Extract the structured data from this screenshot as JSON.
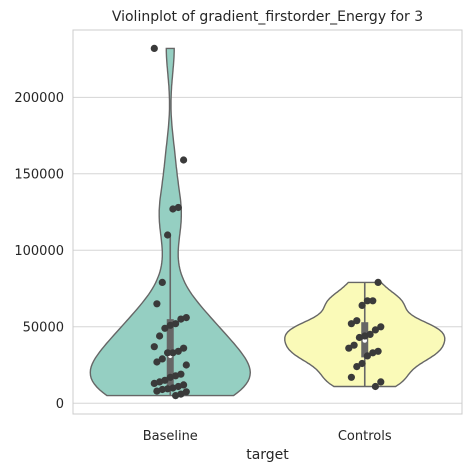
{
  "chart_data": {
    "type": "violin",
    "title": "Violinplot of gradient_firstorder_Energy for 3",
    "xlabel": "target",
    "ylabel": "",
    "categories": [
      "Baseline",
      "Controls"
    ],
    "ylim": [
      -7000,
      244000
    ],
    "yticks": [
      0,
      50000,
      100000,
      150000,
      200000
    ],
    "ytick_labels": [
      "0",
      "50000",
      "100000",
      "150000",
      "200000"
    ],
    "grid": true,
    "colors": {
      "Baseline": "#95cfc2",
      "Controls": "#fafab8",
      "points": "#3a3a3a",
      "outline": "#666666",
      "box": "#666666",
      "median": "#ffffff"
    },
    "series": [
      {
        "category": "Baseline",
        "points": [
          232000,
          159000,
          128000,
          127000,
          110000,
          79000,
          65000,
          56000,
          55000,
          52000,
          51000,
          49000,
          44000,
          37000,
          36000,
          34000,
          33000,
          33000,
          29000,
          27000,
          25000,
          19000,
          18000,
          17000,
          15000,
          14000,
          13000,
          12000,
          11000,
          10000,
          9500,
          9000,
          8000,
          7500,
          6000,
          5000
        ],
        "box": {
          "q1": 10000,
          "median": 31000,
          "q3": 55000,
          "whisker_low": 5000,
          "whisker_high": 110000
        }
      },
      {
        "category": "Controls",
        "points": [
          79000,
          67000,
          67000,
          64000,
          54000,
          52000,
          50000,
          48000,
          45000,
          44000,
          43000,
          38000,
          36000,
          34000,
          33000,
          31000,
          26000,
          24000,
          17000,
          14000,
          11000
        ],
        "box": {
          "q1": 30000,
          "median": 41000,
          "q3": 53000,
          "whisker_low": 11000,
          "whisker_high": 79000
        }
      }
    ]
  }
}
